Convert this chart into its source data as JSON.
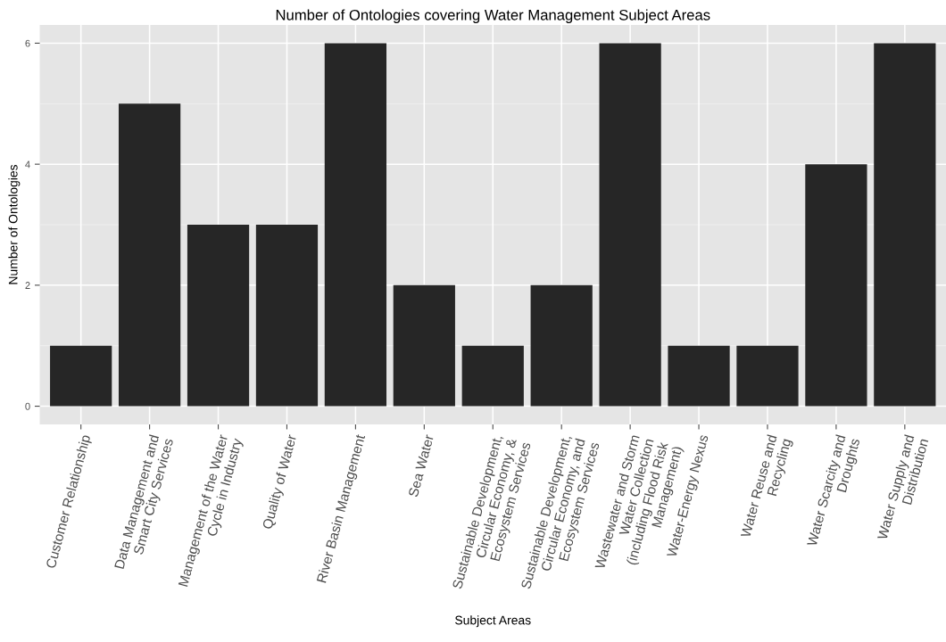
{
  "chart_data": {
    "type": "bar",
    "title": "Number of Ontologies covering Water Management Subject Areas",
    "xlabel": "Subject Areas",
    "ylabel": "Number of Ontologies",
    "categories": [
      "Customer Relationship",
      "Data Management and\nSmart City Services",
      "Management of the Water\nCycle in Industry",
      "Quality of Water",
      "River Basin Management",
      "Sea Water",
      "Sustainable Development,\nCircular Economy, &\nEcosystem Services",
      "Sustainable Development,\nCircular Economy, and\nEcosystem Services",
      "Wastewater and Storm\nWater Collection\n(including Flood Risk\nManagement)",
      "Water-Energy Nexus",
      "Water Reuse and\nRecycling",
      "Water Scarcity and\nDroughts",
      "Water Supply and\nDistribution"
    ],
    "values": [
      1,
      5,
      3,
      3,
      6,
      2,
      1,
      2,
      6,
      1,
      1,
      4,
      6
    ],
    "color": "#262626",
    "ylim": [
      -0.3,
      6.3
    ],
    "yticks": [
      0,
      2,
      4,
      6
    ],
    "grid": true
  }
}
